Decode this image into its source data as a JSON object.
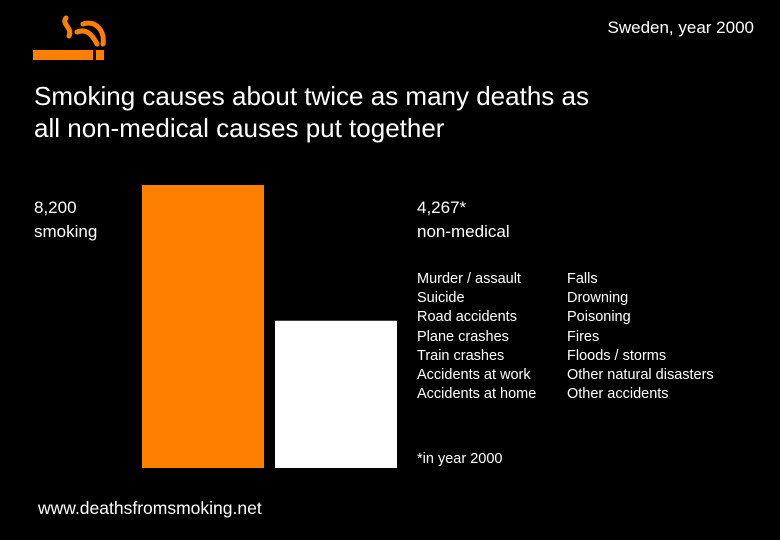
{
  "region": "Sweden, year 2000",
  "headline": {
    "line1": "Smoking causes about twice as many deaths as",
    "line2": "all non-medical causes put together"
  },
  "colors": {
    "background": "#000000",
    "smoking_bar": "#ff7f00",
    "nonmedical_bar": "#ffffff",
    "logo": "#ff7f00"
  },
  "logo_icon": "cigarette-icon",
  "chart_data": {
    "type": "bar",
    "categories": [
      "smoking",
      "non-medical"
    ],
    "values": [
      8200,
      4267
    ],
    "value_labels": [
      "8,200",
      "4,267*"
    ],
    "ylim": [
      0,
      8200
    ],
    "grid": false,
    "legend": "none"
  },
  "non_medical_causes": {
    "left": [
      "Murder / assault",
      "Suicide",
      "Road accidents",
      "Plane crashes",
      "Train crashes",
      "Accidents at work",
      "Accidents at home"
    ],
    "right": [
      "Falls",
      "Drowning",
      "Poisoning",
      "Fires",
      "Floods / storms",
      "Other natural disasters",
      "Other accidents"
    ]
  },
  "footnote": "*in year 2000",
  "website": "www.deathsfromsmoking.net"
}
